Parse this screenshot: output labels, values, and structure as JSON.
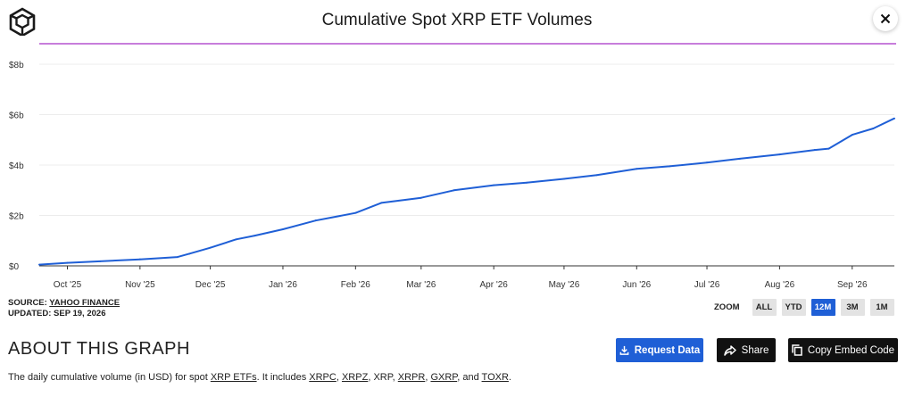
{
  "header": {
    "logo_icon": "cube-logo-icon",
    "title": "Cumulative Spot XRP ETF Volumes",
    "close_icon": "close-icon"
  },
  "chart_data": {
    "type": "line",
    "title": "Cumulative Spot XRP ETF Volumes",
    "xlabel": "",
    "ylabel": "",
    "ylim": [
      0,
      8
    ],
    "y_unit": "billion USD",
    "y_ticks": [
      "$0",
      "$2b",
      "$4b",
      "$6b",
      "$8b"
    ],
    "y_tick_values": [
      0,
      2,
      4,
      6,
      8
    ],
    "x_ticks": [
      "Oct '25",
      "Nov '25",
      "Dec '25",
      "Jan '26",
      "Feb '26",
      "Mar '26",
      "Apr '26",
      "May '26",
      "Jun '26",
      "Jul '26",
      "Aug '26",
      "Sep '26"
    ],
    "x_tick_dates": [
      "2025-10-01",
      "2025-11-01",
      "2025-12-01",
      "2026-01-01",
      "2026-02-01",
      "2026-03-01",
      "2026-04-01",
      "2026-05-01",
      "2026-06-01",
      "2026-07-01",
      "2026-08-01",
      "2026-09-01"
    ],
    "xlim": [
      "2025-09-19",
      "2026-09-19"
    ],
    "grid": true,
    "line_color": "#1f5fd6",
    "series": [
      {
        "x": [
          "2025-09-19",
          "2025-10-01",
          "2025-10-15",
          "2025-11-01",
          "2025-11-17",
          "2025-11-22",
          "2025-12-01",
          "2025-12-12",
          "2025-12-20",
          "2026-01-01",
          "2026-01-15",
          "2026-02-01",
          "2026-02-12",
          "2026-03-01",
          "2026-03-15",
          "2026-04-01",
          "2026-04-15",
          "2026-05-01",
          "2026-05-15",
          "2026-06-01",
          "2026-06-15",
          "2026-07-01",
          "2026-07-15",
          "2026-08-01",
          "2026-08-16",
          "2026-08-22",
          "2026-09-01",
          "2026-09-10",
          "2026-09-19"
        ],
        "values": [
          0.05,
          0.12,
          0.18,
          0.26,
          0.35,
          0.48,
          0.72,
          1.05,
          1.2,
          1.45,
          1.8,
          2.1,
          2.5,
          2.7,
          3.0,
          3.2,
          3.3,
          3.45,
          3.6,
          3.85,
          3.95,
          4.1,
          4.25,
          4.42,
          4.6,
          4.65,
          5.2,
          5.45,
          5.85
        ]
      }
    ]
  },
  "source": {
    "label": "SOURCE:",
    "name": "YAHOO FINANCE",
    "updated": "UPDATED: SEP 19, 2026"
  },
  "zoom": {
    "label": "ZOOM",
    "options": [
      "ALL",
      "YTD",
      "12M",
      "3M",
      "1M"
    ],
    "selected": "12M"
  },
  "about": {
    "heading": "ABOUT THIS GRAPH",
    "request_label": "Request Data",
    "share_label": "Share",
    "embed_label": "Copy Embed Code"
  },
  "description": {
    "prefix": "The daily cumulative volume (in USD) for spot ",
    "link_etfs": "XRP ETFs",
    "mid": ". It includes ",
    "tickers": [
      "XRPC",
      "XRPZ",
      "XRP",
      "XRPR",
      "GXRP",
      "TOXR"
    ],
    "underlined": [
      true,
      true,
      false,
      true,
      true,
      true
    ],
    "suffix": "."
  },
  "colors": {
    "accent": "#1f5fd6",
    "header_rule": "#c77ddb",
    "dark_button": "#111111"
  }
}
